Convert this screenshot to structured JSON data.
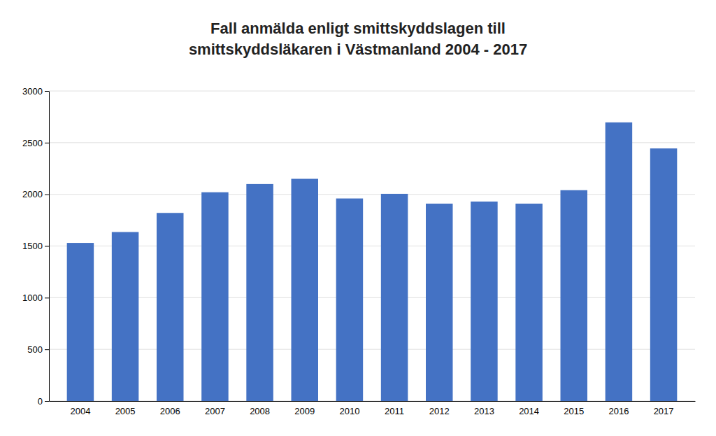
{
  "chart_data": {
    "type": "bar",
    "title": "Fall anmälda enligt smittskyddslagen till\nsmittskyddsläkaren i Västmanland 2004 - 2017",
    "categories": [
      "2004",
      "2005",
      "2006",
      "2007",
      "2008",
      "2009",
      "2010",
      "2011",
      "2012",
      "2013",
      "2014",
      "2015",
      "2016",
      "2017"
    ],
    "values": [
      1530,
      1635,
      1820,
      2020,
      2100,
      2150,
      1960,
      2005,
      1910,
      1930,
      1910,
      2040,
      2696,
      2444
    ],
    "color": "#4472C4",
    "ylim": [
      0,
      3000
    ],
    "yticks": [
      0,
      500,
      1000,
      1500,
      2000,
      2500,
      3000
    ],
    "grid": true
  }
}
